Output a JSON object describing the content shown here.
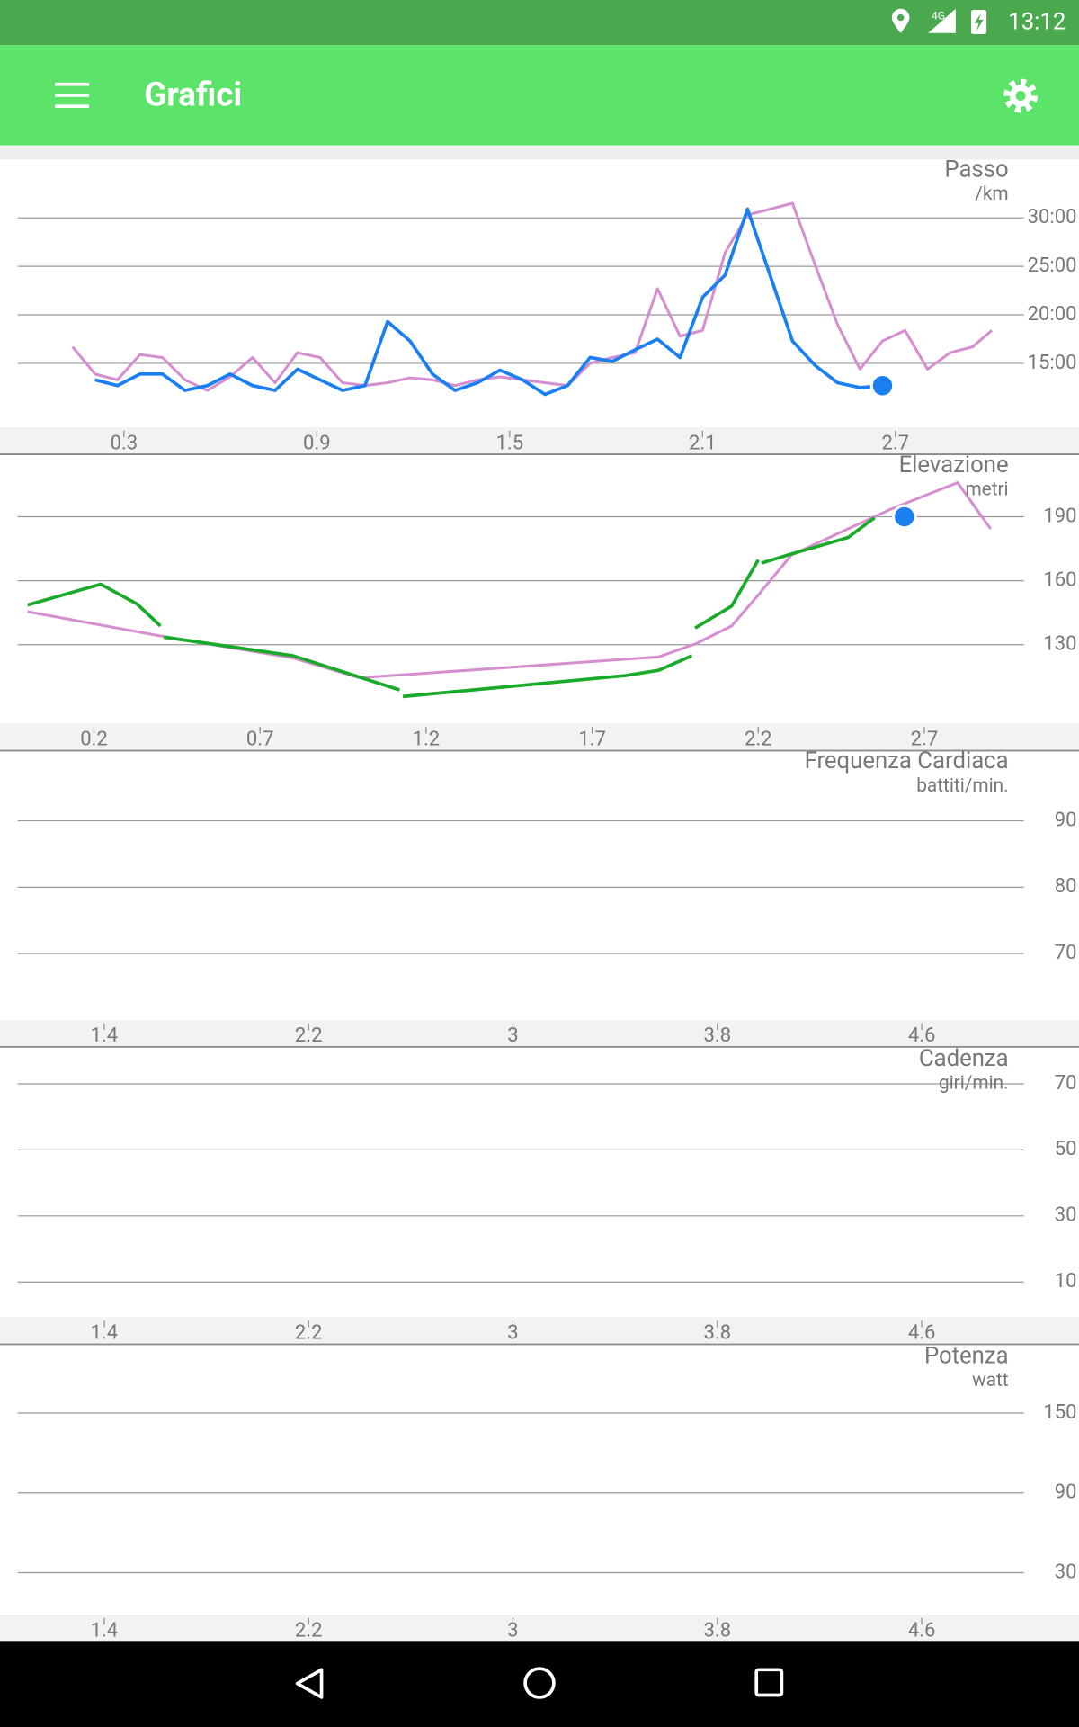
{
  "status_bar": {
    "network": "4G",
    "time": "13:12"
  },
  "app_bar": {
    "title": "Grafici"
  },
  "chart_data": [
    {
      "type": "line",
      "title": "Passo",
      "subtitle": "/km",
      "x": [
        0.14,
        0.21,
        0.28,
        0.35,
        0.42,
        0.49,
        0.56,
        0.63,
        0.7,
        0.77,
        0.84,
        0.91,
        0.98,
        1.05,
        1.12,
        1.19,
        1.26,
        1.33,
        1.4,
        1.47,
        1.54,
        1.61,
        1.68,
        1.75,
        1.82,
        1.89,
        1.96,
        2.03,
        2.1,
        2.17,
        2.24,
        2.31,
        2.38,
        2.45,
        2.52,
        2.59,
        2.66,
        2.73,
        2.8,
        2.87,
        2.94,
        3.0
      ],
      "series": [
        {
          "color": "#d58fd0",
          "values": [
            16.7,
            13.9,
            13.3,
            15.9,
            15.6,
            13.3,
            12.2,
            13.6,
            15.6,
            13.0,
            16.1,
            15.6,
            13.0,
            12.7,
            13.0,
            13.5,
            13.3,
            12.7,
            13.3,
            13.6,
            13.3,
            13.0,
            12.7,
            15.0,
            15.6,
            16.1,
            22.7,
            17.8,
            18.4,
            26.4,
            30.3,
            30.9,
            31.5,
            25.2,
            19.0,
            14.4,
            17.3,
            18.4,
            14.4,
            16.1,
            16.7,
            18.4
          ]
        },
        {
          "color": "#1a7ff0",
          "values": [
            null,
            13.3,
            12.7,
            13.9,
            13.9,
            12.2,
            12.7,
            13.9,
            12.7,
            12.2,
            14.4,
            13.3,
            12.2,
            12.7,
            19.3,
            17.3,
            13.9,
            12.2,
            13.0,
            14.3,
            13.3,
            11.8,
            12.7,
            15.6,
            15.2,
            16.4,
            17.5,
            15.6,
            21.8,
            24.1,
            30.9,
            24.1,
            17.3,
            14.8,
            13.0,
            12.5,
            12.7,
            null,
            null,
            null,
            null,
            null
          ]
        }
      ],
      "marker": {
        "x": 2.66,
        "y": 12.7,
        "color": "#1a7ff0"
      },
      "xlim": [
        0,
        3.1
      ],
      "xticks": [
        0.3,
        0.9,
        1.5,
        2.1,
        2.7
      ],
      "ylim": [
        8.4,
        36
      ],
      "yticks": [
        {
          "value": 15,
          "label": "15:00"
        },
        {
          "value": 20,
          "label": "20:00"
        },
        {
          "value": 25,
          "label": "25:00"
        },
        {
          "value": 30,
          "label": "30:00"
        }
      ],
      "grid": true
    },
    {
      "type": "line",
      "title": "Elevazione",
      "subtitle": "metri",
      "x": [
        0,
        0.22,
        0.33,
        0.4,
        0.405,
        0.41,
        0.8,
        1.0,
        1.12,
        1.125,
        1.13,
        1.8,
        1.9,
        2.0,
        2.005,
        2.01,
        2.12,
        2.2,
        2.205,
        2.21,
        2.3,
        2.47,
        2.55,
        2.6,
        2.8,
        2.9
      ],
      "series": [
        {
          "color": "#d58fd0",
          "values": [
            145.5,
            139.2,
            136.1,
            134.1,
            134.0,
            133.8,
            123.8,
            114.5,
            115.8,
            115.9,
            115.9,
            123.2,
            124.3,
            129.8,
            130,
            130.3,
            138.8,
            153.3,
            154.2,
            155.2,
            172,
            184.3,
            190,
            193.6,
            206,
            184.3
          ]
        },
        {
          "color": "#1aaa2a",
          "values": [
            148.6,
            158.4,
            149.1,
            138.8,
            null,
            133.6,
            124.8,
            114.8,
            108.8,
            null,
            105.7,
            115.5,
            118,
            124.8,
            null,
            137.8,
            148.1,
            169.8,
            null,
            168.3,
            172.5,
            180.2,
            189.5,
            null,
            null,
            null
          ]
        }
      ],
      "marker": {
        "x": 2.64,
        "y": 190,
        "color": "#1a7ff0"
      },
      "xlim": [
        0,
        3
      ],
      "xticks": [
        0.2,
        0.7,
        1.2,
        1.7,
        2.2,
        2.7
      ],
      "ylim": [
        93,
        219
      ],
      "yticks": [
        130,
        160,
        190
      ],
      "grid": true
    },
    {
      "type": "line",
      "title": "Frequenza Cardiaca",
      "subtitle": "battiti/min.",
      "series": [],
      "xlim": [
        1.1,
        5.0
      ],
      "xticks": [
        1.4,
        2.2,
        3.0,
        3.8,
        4.6
      ],
      "ylim": [
        60,
        100.5
      ],
      "yticks": [
        70,
        80,
        90
      ],
      "grid": true
    },
    {
      "type": "line",
      "title": "Cadenza",
      "subtitle": "giri/min.",
      "series": [],
      "xlim": [
        1.1,
        5.0
      ],
      "xticks": [
        1.4,
        2.2,
        3.0,
        3.8,
        4.6
      ],
      "ylim": [
        -0.7,
        80.7
      ],
      "yticks": [
        10,
        30,
        50,
        70
      ],
      "grid": true
    },
    {
      "type": "line",
      "title": "Potenza",
      "subtitle": "watt",
      "series": [],
      "xlim": [
        1.1,
        5.0
      ],
      "xticks": [
        1.4,
        2.2,
        3.0,
        3.8,
        4.6
      ],
      "ylim": [
        -1.5,
        200.5
      ],
      "yticks": [
        30,
        90,
        150
      ],
      "grid": true
    }
  ]
}
